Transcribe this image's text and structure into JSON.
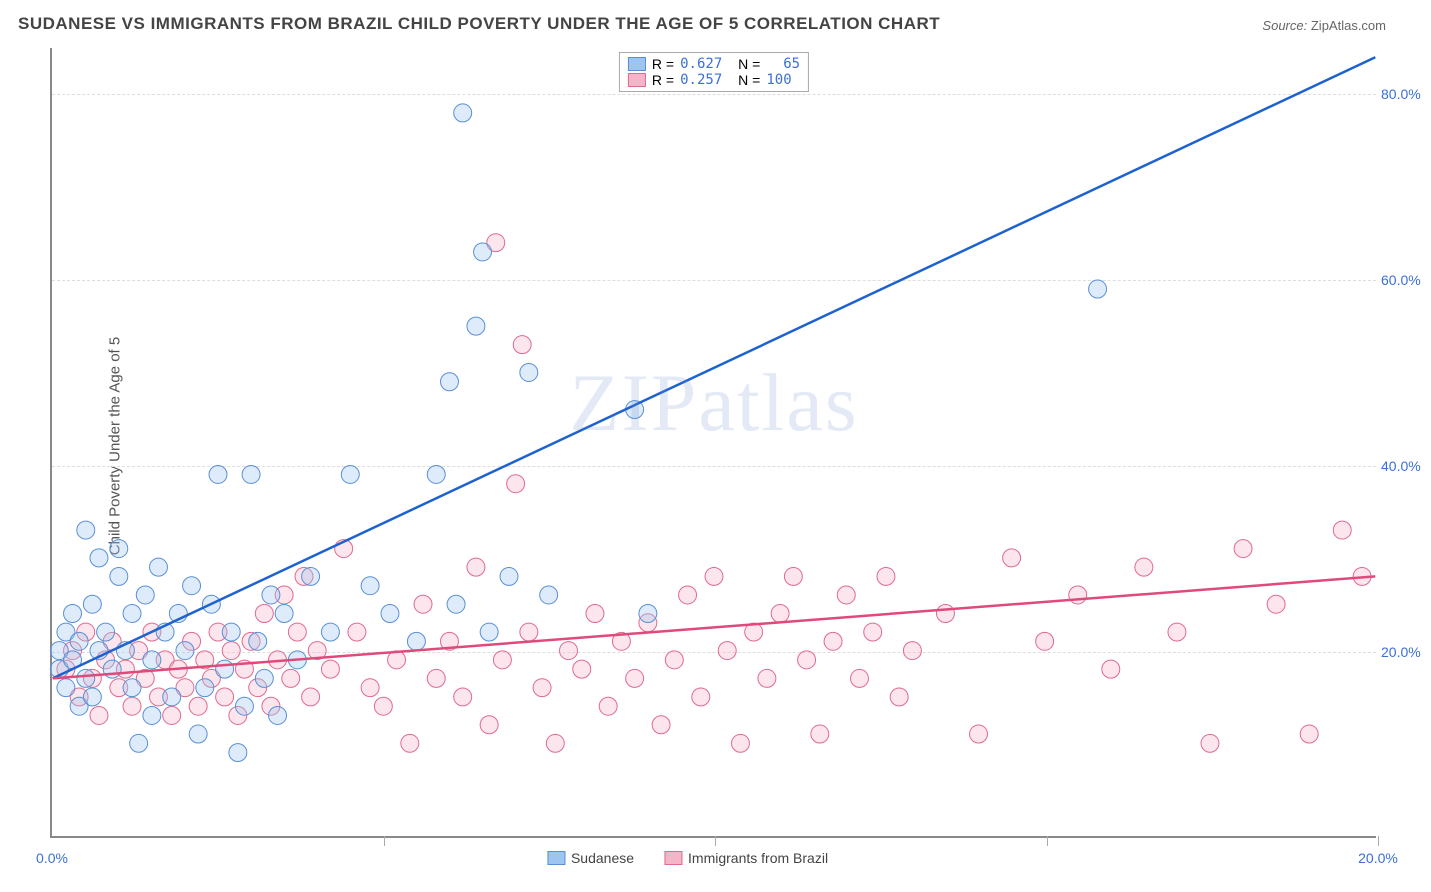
{
  "title": "SUDANESE VS IMMIGRANTS FROM BRAZIL CHILD POVERTY UNDER THE AGE OF 5 CORRELATION CHART",
  "source_label": "Source:",
  "source_value": "ZipAtlas.com",
  "y_axis_label": "Child Poverty Under the Age of 5",
  "watermark": "ZIPatlas",
  "chart": {
    "type": "scatter",
    "background_color": "#ffffff",
    "grid_color": "#dddddd",
    "grid_style": "dashed",
    "axis_color": "#888888",
    "tick_label_color": "#3a6fd8",
    "xlim": [
      0,
      20
    ],
    "ylim": [
      0,
      85
    ],
    "xticks": [
      0,
      5,
      10,
      15,
      20
    ],
    "xtick_labels": [
      "0.0%",
      "",
      "",
      "",
      "20.0%"
    ],
    "yticks": [
      20,
      40,
      60,
      80
    ],
    "ytick_labels": [
      "20.0%",
      "40.0%",
      "60.0%",
      "80.0%"
    ],
    "marker_radius": 9,
    "marker_opacity": 0.35,
    "line_width": 2.5,
    "series": [
      {
        "name": "Sudanese",
        "color_fill": "#9ec5f0",
        "color_stroke": "#5a8fd6",
        "line_color": "#1e62d0",
        "R": "0.627",
        "N": "65",
        "trend": {
          "x1": 0,
          "y1": 17,
          "x2": 20,
          "y2": 84
        },
        "points": [
          [
            0.1,
            20
          ],
          [
            0.1,
            18
          ],
          [
            0.2,
            22
          ],
          [
            0.2,
            16
          ],
          [
            0.3,
            24
          ],
          [
            0.3,
            19
          ],
          [
            0.4,
            21
          ],
          [
            0.4,
            14
          ],
          [
            0.5,
            33
          ],
          [
            0.5,
            17
          ],
          [
            0.6,
            25
          ],
          [
            0.6,
            15
          ],
          [
            0.7,
            20
          ],
          [
            0.7,
            30
          ],
          [
            0.8,
            22
          ],
          [
            0.9,
            18
          ],
          [
            1.0,
            28
          ],
          [
            1.0,
            31
          ],
          [
            1.1,
            20
          ],
          [
            1.2,
            24
          ],
          [
            1.2,
            16
          ],
          [
            1.3,
            10
          ],
          [
            1.4,
            26
          ],
          [
            1.5,
            19
          ],
          [
            1.5,
            13
          ],
          [
            1.6,
            29
          ],
          [
            1.7,
            22
          ],
          [
            1.8,
            15
          ],
          [
            1.9,
            24
          ],
          [
            2.0,
            20
          ],
          [
            2.1,
            27
          ],
          [
            2.2,
            11
          ],
          [
            2.3,
            16
          ],
          [
            2.4,
            25
          ],
          [
            2.5,
            39
          ],
          [
            2.6,
            18
          ],
          [
            2.7,
            22
          ],
          [
            2.8,
            9
          ],
          [
            2.9,
            14
          ],
          [
            3.0,
            39
          ],
          [
            3.1,
            21
          ],
          [
            3.2,
            17
          ],
          [
            3.3,
            26
          ],
          [
            3.4,
            13
          ],
          [
            3.5,
            24
          ],
          [
            3.7,
            19
          ],
          [
            3.9,
            28
          ],
          [
            4.2,
            22
          ],
          [
            4.5,
            39
          ],
          [
            4.8,
            27
          ],
          [
            5.1,
            24
          ],
          [
            5.5,
            21
          ],
          [
            5.8,
            39
          ],
          [
            6.0,
            49
          ],
          [
            6.1,
            25
          ],
          [
            6.2,
            78
          ],
          [
            6.4,
            55
          ],
          [
            6.5,
            63
          ],
          [
            6.6,
            22
          ],
          [
            6.9,
            28
          ],
          [
            7.2,
            50
          ],
          [
            7.5,
            26
          ],
          [
            8.8,
            46
          ],
          [
            9.0,
            24
          ],
          [
            15.8,
            59
          ]
        ]
      },
      {
        "name": "Immigrants from Brazil",
        "color_fill": "#f5b5c8",
        "color_stroke": "#e06a8f",
        "line_color": "#e04a7a",
        "R": "0.257",
        "N": "100",
        "trend": {
          "x1": 0,
          "y1": 17,
          "x2": 20,
          "y2": 28
        },
        "points": [
          [
            0.2,
            18
          ],
          [
            0.3,
            20
          ],
          [
            0.4,
            15
          ],
          [
            0.5,
            22
          ],
          [
            0.6,
            17
          ],
          [
            0.7,
            13
          ],
          [
            0.8,
            19
          ],
          [
            0.9,
            21
          ],
          [
            1.0,
            16
          ],
          [
            1.1,
            18
          ],
          [
            1.2,
            14
          ],
          [
            1.3,
            20
          ],
          [
            1.4,
            17
          ],
          [
            1.5,
            22
          ],
          [
            1.6,
            15
          ],
          [
            1.7,
            19
          ],
          [
            1.8,
            13
          ],
          [
            1.9,
            18
          ],
          [
            2.0,
            16
          ],
          [
            2.1,
            21
          ],
          [
            2.2,
            14
          ],
          [
            2.3,
            19
          ],
          [
            2.4,
            17
          ],
          [
            2.5,
            22
          ],
          [
            2.6,
            15
          ],
          [
            2.7,
            20
          ],
          [
            2.8,
            13
          ],
          [
            2.9,
            18
          ],
          [
            3.0,
            21
          ],
          [
            3.1,
            16
          ],
          [
            3.2,
            24
          ],
          [
            3.3,
            14
          ],
          [
            3.4,
            19
          ],
          [
            3.5,
            26
          ],
          [
            3.6,
            17
          ],
          [
            3.7,
            22
          ],
          [
            3.8,
            28
          ],
          [
            3.9,
            15
          ],
          [
            4.0,
            20
          ],
          [
            4.2,
            18
          ],
          [
            4.4,
            31
          ],
          [
            4.6,
            22
          ],
          [
            4.8,
            16
          ],
          [
            5.0,
            14
          ],
          [
            5.2,
            19
          ],
          [
            5.4,
            10
          ],
          [
            5.6,
            25
          ],
          [
            5.8,
            17
          ],
          [
            6.0,
            21
          ],
          [
            6.2,
            15
          ],
          [
            6.4,
            29
          ],
          [
            6.6,
            12
          ],
          [
            6.7,
            64
          ],
          [
            6.8,
            19
          ],
          [
            7.0,
            38
          ],
          [
            7.1,
            53
          ],
          [
            7.2,
            22
          ],
          [
            7.4,
            16
          ],
          [
            7.6,
            10
          ],
          [
            7.8,
            20
          ],
          [
            8.0,
            18
          ],
          [
            8.2,
            24
          ],
          [
            8.4,
            14
          ],
          [
            8.6,
            21
          ],
          [
            8.8,
            17
          ],
          [
            9.0,
            23
          ],
          [
            9.2,
            12
          ],
          [
            9.4,
            19
          ],
          [
            9.6,
            26
          ],
          [
            9.8,
            15
          ],
          [
            10.0,
            28
          ],
          [
            10.2,
            20
          ],
          [
            10.4,
            10
          ],
          [
            10.6,
            22
          ],
          [
            10.8,
            17
          ],
          [
            11.0,
            24
          ],
          [
            11.2,
            28
          ],
          [
            11.4,
            19
          ],
          [
            11.6,
            11
          ],
          [
            11.8,
            21
          ],
          [
            12.0,
            26
          ],
          [
            12.2,
            17
          ],
          [
            12.4,
            22
          ],
          [
            12.6,
            28
          ],
          [
            12.8,
            15
          ],
          [
            13.0,
            20
          ],
          [
            13.5,
            24
          ],
          [
            14.0,
            11
          ],
          [
            14.5,
            30
          ],
          [
            15.0,
            21
          ],
          [
            15.5,
            26
          ],
          [
            16.0,
            18
          ],
          [
            16.5,
            29
          ],
          [
            17.0,
            22
          ],
          [
            17.5,
            10
          ],
          [
            18.0,
            31
          ],
          [
            18.5,
            25
          ],
          [
            19.0,
            11
          ],
          [
            19.5,
            33
          ],
          [
            19.8,
            28
          ]
        ]
      }
    ]
  },
  "legend_top": {
    "R_label": "R =",
    "N_label": "N ="
  }
}
